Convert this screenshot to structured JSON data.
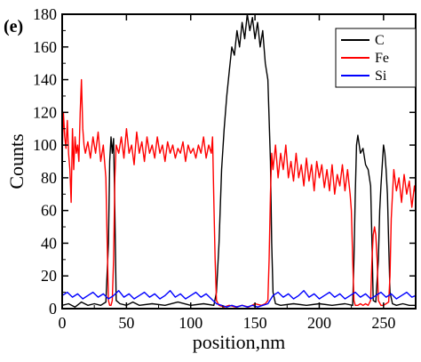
{
  "chart_data": {
    "type": "line",
    "panel_label": "(e)",
    "xlabel": "position,nm",
    "ylabel": "Counts",
    "xlim": [
      0,
      275
    ],
    "ylim": [
      0,
      180
    ],
    "x_ticks": [
      0,
      50,
      100,
      150,
      200,
      250
    ],
    "y_ticks": [
      0,
      20,
      40,
      60,
      80,
      100,
      120,
      140,
      160,
      180
    ],
    "legend_position": "top-right",
    "grid": false,
    "series": [
      {
        "name": "C",
        "color": "#000000",
        "points": [
          [
            0,
            2
          ],
          [
            5,
            3
          ],
          [
            10,
            1
          ],
          [
            15,
            4
          ],
          [
            20,
            2
          ],
          [
            25,
            3
          ],
          [
            30,
            2
          ],
          [
            34,
            4
          ],
          [
            36,
            40
          ],
          [
            37,
            90
          ],
          [
            38,
            105
          ],
          [
            39,
            95
          ],
          [
            40,
            104
          ],
          [
            41,
            60
          ],
          [
            42,
            5
          ],
          [
            45,
            3
          ],
          [
            50,
            2
          ],
          [
            55,
            4
          ],
          [
            60,
            2
          ],
          [
            70,
            3
          ],
          [
            80,
            2
          ],
          [
            90,
            4
          ],
          [
            100,
            2
          ],
          [
            110,
            3
          ],
          [
            118,
            2
          ],
          [
            120,
            10
          ],
          [
            122,
            40
          ],
          [
            124,
            85
          ],
          [
            126,
            110
          ],
          [
            128,
            130
          ],
          [
            130,
            145
          ],
          [
            132,
            160
          ],
          [
            134,
            155
          ],
          [
            136,
            170
          ],
          [
            138,
            160
          ],
          [
            140,
            175
          ],
          [
            142,
            165
          ],
          [
            144,
            180
          ],
          [
            146,
            170
          ],
          [
            148,
            178
          ],
          [
            150,
            165
          ],
          [
            152,
            175
          ],
          [
            154,
            160
          ],
          [
            156,
            170
          ],
          [
            158,
            150
          ],
          [
            160,
            140
          ],
          [
            162,
            90
          ],
          [
            163,
            40
          ],
          [
            164,
            10
          ],
          [
            166,
            3
          ],
          [
            170,
            2
          ],
          [
            180,
            3
          ],
          [
            190,
            2
          ],
          [
            200,
            3
          ],
          [
            210,
            2
          ],
          [
            220,
            3
          ],
          [
            226,
            2
          ],
          [
            227,
            30
          ],
          [
            228,
            70
          ],
          [
            229,
            100
          ],
          [
            230,
            106
          ],
          [
            232,
            95
          ],
          [
            234,
            98
          ],
          [
            236,
            88
          ],
          [
            238,
            85
          ],
          [
            240,
            75
          ],
          [
            241,
            40
          ],
          [
            242,
            5
          ],
          [
            244,
            4
          ],
          [
            246,
            30
          ],
          [
            247,
            60
          ],
          [
            248,
            75
          ],
          [
            249,
            88
          ],
          [
            250,
            100
          ],
          [
            251,
            95
          ],
          [
            252,
            85
          ],
          [
            253,
            70
          ],
          [
            254,
            40
          ],
          [
            255,
            10
          ],
          [
            257,
            3
          ],
          [
            260,
            2
          ],
          [
            265,
            3
          ],
          [
            270,
            2
          ],
          [
            275,
            2
          ]
        ]
      },
      {
        "name": "Fe",
        "color": "#ff0000",
        "points": [
          [
            0,
            95
          ],
          [
            1,
            120
          ],
          [
            2,
            105
          ],
          [
            3,
            98
          ],
          [
            4,
            115
          ],
          [
            5,
            95
          ],
          [
            6,
            85
          ],
          [
            7,
            65
          ],
          [
            8,
            110
          ],
          [
            9,
            85
          ],
          [
            10,
            105
          ],
          [
            11,
            95
          ],
          [
            12,
            100
          ],
          [
            13,
            90
          ],
          [
            14,
            120
          ],
          [
            15,
            140
          ],
          [
            16,
            110
          ],
          [
            17,
            100
          ],
          [
            18,
            95
          ],
          [
            20,
            102
          ],
          [
            22,
            92
          ],
          [
            24,
            105
          ],
          [
            26,
            95
          ],
          [
            28,
            108
          ],
          [
            30,
            90
          ],
          [
            32,
            100
          ],
          [
            34,
            80
          ],
          [
            35,
            40
          ],
          [
            36,
            5
          ],
          [
            37,
            2
          ],
          [
            38,
            2
          ],
          [
            39,
            5
          ],
          [
            40,
            30
          ],
          [
            41,
            80
          ],
          [
            42,
            100
          ],
          [
            44,
            95
          ],
          [
            46,
            105
          ],
          [
            48,
            92
          ],
          [
            50,
            110
          ],
          [
            52,
            95
          ],
          [
            54,
            100
          ],
          [
            56,
            88
          ],
          [
            58,
            108
          ],
          [
            60,
            95
          ],
          [
            62,
            102
          ],
          [
            64,
            90
          ],
          [
            66,
            105
          ],
          [
            68,
            95
          ],
          [
            70,
            100
          ],
          [
            72,
            92
          ],
          [
            74,
            105
          ],
          [
            76,
            95
          ],
          [
            78,
            100
          ],
          [
            80,
            90
          ],
          [
            82,
            102
          ],
          [
            84,
            95
          ],
          [
            86,
            100
          ],
          [
            88,
            92
          ],
          [
            90,
            98
          ],
          [
            92,
            95
          ],
          [
            94,
            102
          ],
          [
            96,
            90
          ],
          [
            98,
            100
          ],
          [
            100,
            95
          ],
          [
            102,
            98
          ],
          [
            104,
            92
          ],
          [
            106,
            100
          ],
          [
            108,
            95
          ],
          [
            110,
            105
          ],
          [
            112,
            92
          ],
          [
            114,
            100
          ],
          [
            116,
            95
          ],
          [
            117,
            105
          ],
          [
            118,
            65
          ],
          [
            119,
            30
          ],
          [
            120,
            5
          ],
          [
            122,
            2
          ],
          [
            126,
            1
          ],
          [
            130,
            2
          ],
          [
            135,
            1
          ],
          [
            140,
            2
          ],
          [
            145,
            1
          ],
          [
            150,
            3
          ],
          [
            155,
            2
          ],
          [
            158,
            3
          ],
          [
            160,
            5
          ],
          [
            161,
            30
          ],
          [
            162,
            70
          ],
          [
            163,
            95
          ],
          [
            164,
            85
          ],
          [
            166,
            100
          ],
          [
            168,
            80
          ],
          [
            170,
            95
          ],
          [
            172,
            85
          ],
          [
            174,
            100
          ],
          [
            176,
            80
          ],
          [
            178,
            90
          ],
          [
            180,
            78
          ],
          [
            182,
            95
          ],
          [
            184,
            80
          ],
          [
            186,
            88
          ],
          [
            188,
            75
          ],
          [
            190,
            92
          ],
          [
            192,
            78
          ],
          [
            194,
            88
          ],
          [
            196,
            72
          ],
          [
            198,
            90
          ],
          [
            200,
            80
          ],
          [
            202,
            88
          ],
          [
            204,
            74
          ],
          [
            206,
            85
          ],
          [
            208,
            72
          ],
          [
            210,
            88
          ],
          [
            212,
            70
          ],
          [
            214,
            82
          ],
          [
            216,
            75
          ],
          [
            218,
            88
          ],
          [
            220,
            72
          ],
          [
            222,
            85
          ],
          [
            224,
            70
          ],
          [
            225,
            60
          ],
          [
            226,
            30
          ],
          [
            227,
            5
          ],
          [
            228,
            2
          ],
          [
            230,
            2
          ],
          [
            232,
            3
          ],
          [
            234,
            2
          ],
          [
            236,
            3
          ],
          [
            238,
            2
          ],
          [
            240,
            5
          ],
          [
            241,
            30
          ],
          [
            242,
            45
          ],
          [
            243,
            50
          ],
          [
            244,
            45
          ],
          [
            245,
            30
          ],
          [
            246,
            5
          ],
          [
            248,
            2
          ],
          [
            250,
            2
          ],
          [
            252,
            3
          ],
          [
            254,
            4
          ],
          [
            255,
            20
          ],
          [
            256,
            55
          ],
          [
            257,
            70
          ],
          [
            258,
            85
          ],
          [
            260,
            72
          ],
          [
            262,
            80
          ],
          [
            264,
            65
          ],
          [
            266,
            82
          ],
          [
            268,
            70
          ],
          [
            270,
            78
          ],
          [
            272,
            62
          ],
          [
            274,
            75
          ],
          [
            275,
            70
          ]
        ]
      },
      {
        "name": "Si",
        "color": "#0000ff",
        "points": [
          [
            0,
            8
          ],
          [
            4,
            10
          ],
          [
            8,
            7
          ],
          [
            12,
            9
          ],
          [
            16,
            6
          ],
          [
            20,
            8
          ],
          [
            24,
            10
          ],
          [
            28,
            7
          ],
          [
            32,
            9
          ],
          [
            36,
            6
          ],
          [
            40,
            8
          ],
          [
            44,
            11
          ],
          [
            48,
            7
          ],
          [
            52,
            9
          ],
          [
            56,
            6
          ],
          [
            60,
            8
          ],
          [
            64,
            10
          ],
          [
            68,
            7
          ],
          [
            72,
            9
          ],
          [
            76,
            6
          ],
          [
            80,
            8
          ],
          [
            84,
            11
          ],
          [
            88,
            7
          ],
          [
            92,
            9
          ],
          [
            96,
            6
          ],
          [
            100,
            8
          ],
          [
            104,
            10
          ],
          [
            108,
            7
          ],
          [
            112,
            9
          ],
          [
            116,
            6
          ],
          [
            120,
            3
          ],
          [
            124,
            2
          ],
          [
            128,
            1
          ],
          [
            132,
            2
          ],
          [
            136,
            1
          ],
          [
            140,
            2
          ],
          [
            144,
            1
          ],
          [
            148,
            2
          ],
          [
            152,
            1
          ],
          [
            156,
            2
          ],
          [
            160,
            3
          ],
          [
            164,
            8
          ],
          [
            168,
            10
          ],
          [
            172,
            7
          ],
          [
            176,
            9
          ],
          [
            180,
            6
          ],
          [
            184,
            8
          ],
          [
            188,
            11
          ],
          [
            192,
            7
          ],
          [
            196,
            9
          ],
          [
            200,
            6
          ],
          [
            204,
            8
          ],
          [
            208,
            10
          ],
          [
            212,
            7
          ],
          [
            216,
            9
          ],
          [
            220,
            6
          ],
          [
            224,
            8
          ],
          [
            228,
            10
          ],
          [
            232,
            7
          ],
          [
            236,
            9
          ],
          [
            240,
            6
          ],
          [
            244,
            8
          ],
          [
            248,
            10
          ],
          [
            252,
            7
          ],
          [
            256,
            9
          ],
          [
            260,
            6
          ],
          [
            264,
            8
          ],
          [
            268,
            10
          ],
          [
            272,
            7
          ],
          [
            275,
            8
          ]
        ]
      }
    ]
  }
}
